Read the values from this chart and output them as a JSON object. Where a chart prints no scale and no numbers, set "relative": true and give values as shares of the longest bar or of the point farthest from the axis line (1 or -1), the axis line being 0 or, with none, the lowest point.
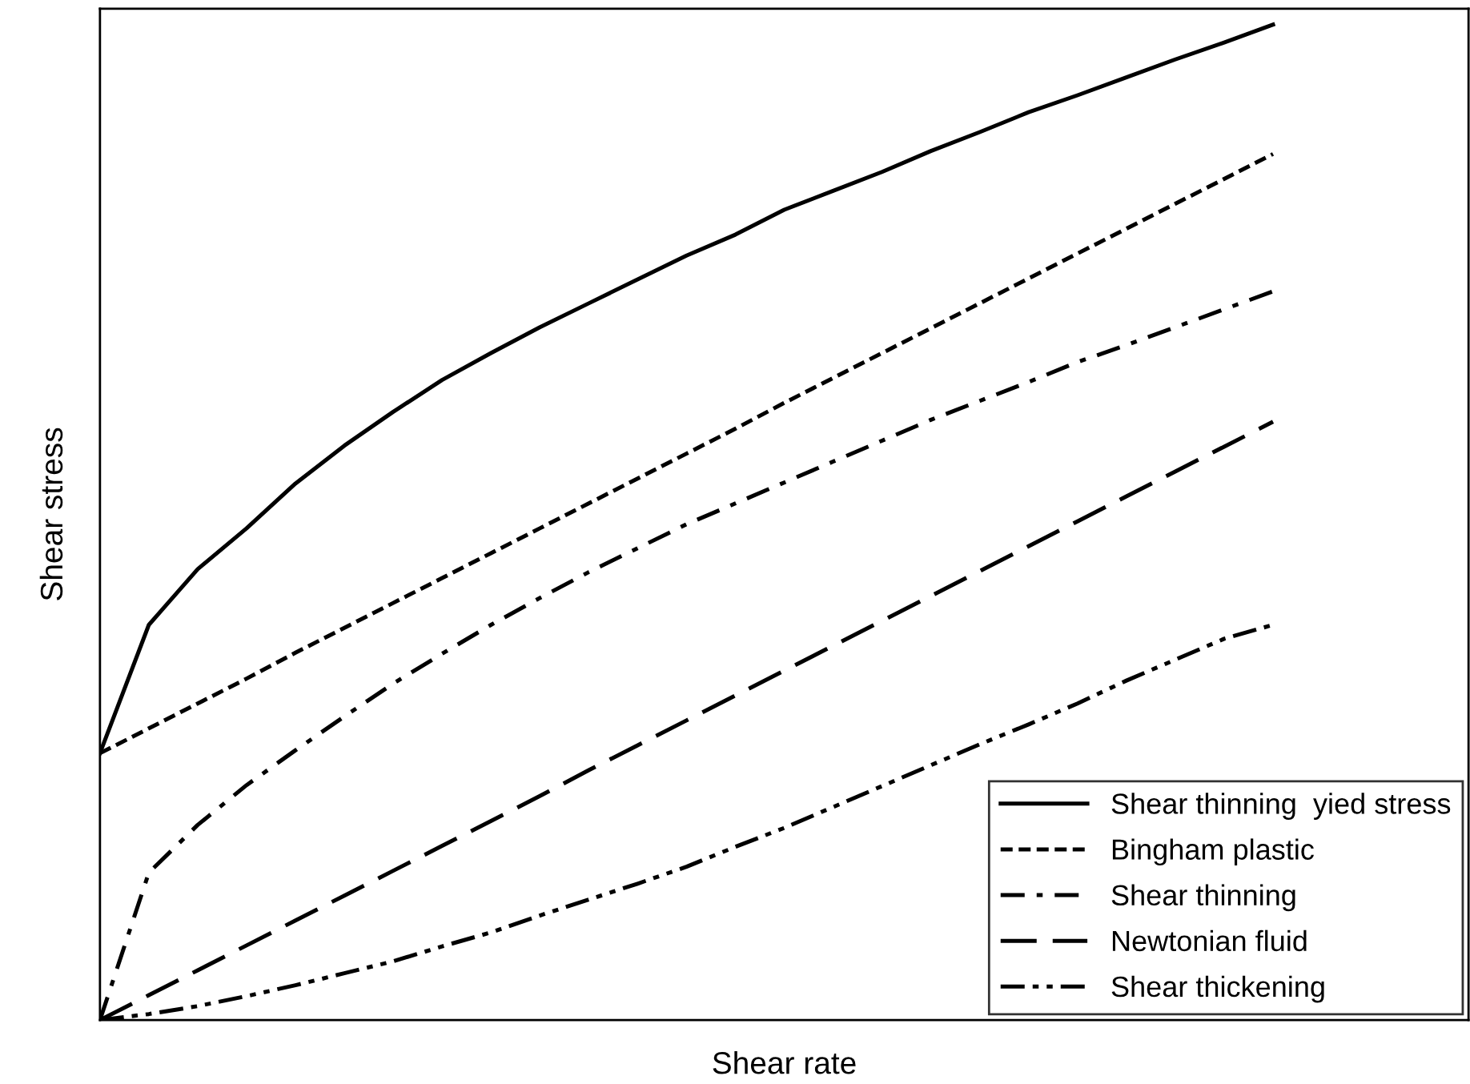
{
  "chart_data": {
    "type": "line",
    "relative": true,
    "xlabel": "Shear rate",
    "ylabel": "Shear stress",
    "legend": "bottom right",
    "marker": "none",
    "categories": [
      null,
      null,
      null,
      null,
      null,
      null,
      null,
      null,
      null,
      null,
      null,
      null,
      null,
      null,
      null,
      null,
      null,
      null,
      null,
      null,
      null,
      null,
      null,
      null,
      null,
      null,
      null,
      null,
      null
    ],
    "series": [
      {
        "name": "Shear thinning  yied stress",
        "color": "#000000",
        "line_style": "solid",
        "values": [
          0.268,
          0.397,
          0.453,
          0.494,
          0.539,
          0.577,
          0.611,
          0.643,
          0.67,
          0.696,
          0.72,
          0.744,
          0.768,
          0.789,
          0.814,
          0.833,
          0.852,
          0.873,
          0.892,
          0.912,
          0.929,
          0.947,
          0.965,
          0.982,
          1,
          null,
          null,
          null,
          null
        ]
      },
      {
        "name": "Bingham plastic",
        "color": "#000000",
        "line_style": "dashed",
        "values": [
          0.268,
          0.293,
          0.318,
          0.343,
          0.369,
          0.394,
          0.419,
          0.444,
          0.469,
          0.494,
          0.519,
          0.544,
          0.569,
          0.594,
          0.62,
          0.645,
          0.67,
          0.695,
          0.72,
          0.745,
          0.77,
          0.795,
          0.82,
          0.845,
          0.87,
          null,
          null,
          null,
          null
        ]
      },
      {
        "name": "Shear thinning",
        "color": "#000000",
        "line_style": "dashdot",
        "values": [
          0,
          0.148,
          0.196,
          0.236,
          0.271,
          0.305,
          0.338,
          0.368,
          0.397,
          0.424,
          0.45,
          0.474,
          0.498,
          0.519,
          0.54,
          0.561,
          0.582,
          0.603,
          0.622,
          0.641,
          0.661,
          0.678,
          0.696,
          0.714,
          0.732,
          null,
          null,
          null,
          null
        ]
      },
      {
        "name": "Newtonian fluid",
        "color": "#000000",
        "line_style": "longdash",
        "values": [
          0,
          0.025,
          0.05,
          0.075,
          0.1,
          0.125,
          0.15,
          0.175,
          0.2,
          0.225,
          0.251,
          0.276,
          0.301,
          0.326,
          0.351,
          0.376,
          0.401,
          0.426,
          0.451,
          0.476,
          0.501,
          0.526,
          0.551,
          0.576,
          0.601,
          null,
          null,
          null,
          null
        ]
      },
      {
        "name": "Shear thickening",
        "color": "#000000",
        "line_style": "dashdotdot",
        "values": [
          0,
          0.006,
          0.014,
          0.024,
          0.035,
          0.047,
          0.059,
          0.074,
          0.088,
          0.105,
          0.121,
          0.137,
          0.154,
          0.174,
          0.193,
          0.214,
          0.235,
          0.256,
          0.277,
          0.297,
          0.318,
          0.341,
          0.362,
          0.383,
          0.397,
          null,
          null,
          null,
          null
        ]
      }
    ]
  }
}
